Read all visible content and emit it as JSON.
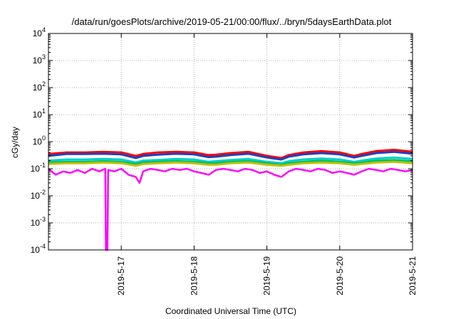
{
  "chart_data": {
    "type": "line",
    "title": "/data/run/goesPlots/archive/2019-05-21/00:00/flux/../bryn/5daysEarthData.plot",
    "xlabel": "Coordinated Universal Time (UTC)",
    "ylabel": "cGy/day",
    "yscale": "log",
    "ylim": [
      0.0001,
      10000
    ],
    "xlim": [
      "2019-05-16 00:00",
      "2019-05-21 00:00"
    ],
    "y_ticks": [
      {
        "base": "10",
        "exp": "-4",
        "value": 0.0001
      },
      {
        "base": "10",
        "exp": "-3",
        "value": 0.001
      },
      {
        "base": "10",
        "exp": "-2",
        "value": 0.01
      },
      {
        "base": "10",
        "exp": "-1",
        "value": 0.1
      },
      {
        "base": "10",
        "exp": "0",
        "value": 1
      },
      {
        "base": "10",
        "exp": "1",
        "value": 10
      },
      {
        "base": "10",
        "exp": "2",
        "value": 100
      },
      {
        "base": "10",
        "exp": "3",
        "value": 1000
      },
      {
        "base": "10",
        "exp": "4",
        "value": 10000
      }
    ],
    "x_ticks": [
      {
        "label": "2019-5-17",
        "day": 1
      },
      {
        "label": "2019-5-18",
        "day": 2
      },
      {
        "label": "2019-5-19",
        "day": 3
      },
      {
        "label": "2019-5-20",
        "day": 4
      },
      {
        "label": "2019-5-21",
        "day": 5
      }
    ],
    "grid": true,
    "series": [
      {
        "color": "#ff0000",
        "x": [
          0.0,
          0.25,
          0.5,
          0.75,
          1.0,
          1.2,
          1.3,
          1.5,
          1.75,
          2.0,
          2.2,
          2.3,
          2.5,
          2.75,
          3.0,
          3.2,
          3.3,
          3.5,
          3.75,
          4.0,
          4.2,
          4.3,
          4.5,
          4.75,
          5.0
        ],
        "y": [
          0.35,
          0.4,
          0.4,
          0.42,
          0.4,
          0.3,
          0.35,
          0.4,
          0.42,
          0.4,
          0.32,
          0.33,
          0.38,
          0.42,
          0.3,
          0.25,
          0.32,
          0.4,
          0.45,
          0.4,
          0.3,
          0.35,
          0.45,
          0.5,
          0.42
        ]
      },
      {
        "color": "#1f3fbf",
        "x": [
          0.0,
          0.25,
          0.5,
          0.75,
          1.0,
          1.2,
          1.3,
          1.5,
          1.75,
          2.0,
          2.2,
          2.3,
          2.5,
          2.75,
          3.0,
          3.2,
          3.3,
          3.5,
          3.75,
          4.0,
          4.2,
          4.3,
          4.5,
          4.75,
          5.0
        ],
        "y": [
          0.3,
          0.35,
          0.35,
          0.36,
          0.34,
          0.25,
          0.3,
          0.33,
          0.36,
          0.34,
          0.27,
          0.28,
          0.32,
          0.36,
          0.26,
          0.22,
          0.28,
          0.34,
          0.38,
          0.34,
          0.26,
          0.3,
          0.38,
          0.42,
          0.36
        ]
      },
      {
        "color": "#00d0d0",
        "x": [
          0.0,
          0.25,
          0.5,
          0.75,
          1.0,
          1.2,
          1.3,
          1.5,
          1.75,
          2.0,
          2.2,
          2.3,
          2.5,
          2.75,
          3.0,
          3.2,
          3.3,
          3.5,
          3.75,
          4.0,
          4.2,
          4.3,
          4.5,
          4.75,
          5.0
        ],
        "y": [
          0.2,
          0.22,
          0.22,
          0.23,
          0.22,
          0.17,
          0.2,
          0.21,
          0.23,
          0.22,
          0.18,
          0.19,
          0.21,
          0.23,
          0.18,
          0.16,
          0.19,
          0.22,
          0.24,
          0.22,
          0.18,
          0.2,
          0.24,
          0.26,
          0.23
        ]
      },
      {
        "color": "#00c060",
        "x": [
          0.0,
          0.25,
          0.5,
          0.75,
          1.0,
          1.2,
          1.3,
          1.5,
          1.75,
          2.0,
          2.2,
          2.3,
          2.5,
          2.75,
          3.0,
          3.2,
          3.3,
          3.5,
          3.75,
          4.0,
          4.2,
          4.3,
          4.5,
          4.75,
          5.0
        ],
        "y": [
          0.17,
          0.18,
          0.18,
          0.19,
          0.18,
          0.15,
          0.17,
          0.18,
          0.19,
          0.18,
          0.16,
          0.16,
          0.18,
          0.19,
          0.16,
          0.14,
          0.16,
          0.18,
          0.2,
          0.18,
          0.16,
          0.17,
          0.2,
          0.21,
          0.19
        ]
      },
      {
        "color": "#c0c000",
        "x": [
          0.0,
          0.25,
          0.5,
          0.75,
          1.0,
          1.2,
          1.3,
          1.5,
          1.75,
          2.0,
          2.2,
          2.3,
          2.5,
          2.75,
          3.0,
          3.2,
          3.3,
          3.5,
          3.75,
          4.0,
          4.2,
          4.3,
          4.5,
          4.75,
          5.0
        ],
        "y": [
          0.15,
          0.16,
          0.16,
          0.17,
          0.16,
          0.13,
          0.15,
          0.16,
          0.17,
          0.16,
          0.14,
          0.14,
          0.16,
          0.17,
          0.14,
          0.13,
          0.14,
          0.16,
          0.17,
          0.16,
          0.14,
          0.15,
          0.17,
          0.18,
          0.16
        ]
      },
      {
        "color": "#ff00ff",
        "x": [
          0.0,
          0.1,
          0.2,
          0.3,
          0.4,
          0.5,
          0.6,
          0.7,
          0.78,
          0.79,
          0.8,
          0.81,
          0.82,
          0.9,
          1.0,
          1.1,
          1.2,
          1.25,
          1.3,
          1.4,
          1.5,
          1.6,
          1.7,
          1.8,
          1.9,
          2.0,
          2.1,
          2.2,
          2.3,
          2.4,
          2.5,
          2.6,
          2.7,
          2.8,
          2.9,
          3.0,
          3.1,
          3.2,
          3.3,
          3.4,
          3.5,
          3.6,
          3.7,
          3.8,
          3.9,
          4.0,
          4.1,
          4.2,
          4.3,
          4.4,
          4.5,
          4.6,
          4.7,
          4.8,
          4.9,
          5.0
        ],
        "y": [
          0.1,
          0.06,
          0.08,
          0.07,
          0.09,
          0.07,
          0.1,
          0.08,
          0.1,
          0.0001,
          0.0001,
          0.0001,
          0.09,
          0.08,
          0.1,
          0.06,
          0.05,
          0.03,
          0.08,
          0.1,
          0.09,
          0.08,
          0.1,
          0.09,
          0.1,
          0.08,
          0.07,
          0.06,
          0.09,
          0.1,
          0.09,
          0.08,
          0.1,
          0.09,
          0.07,
          0.08,
          0.06,
          0.05,
          0.08,
          0.1,
          0.09,
          0.08,
          0.1,
          0.09,
          0.07,
          0.08,
          0.07,
          0.06,
          0.08,
          0.1,
          0.09,
          0.08,
          0.1,
          0.09,
          0.08,
          0.09
        ]
      }
    ]
  }
}
